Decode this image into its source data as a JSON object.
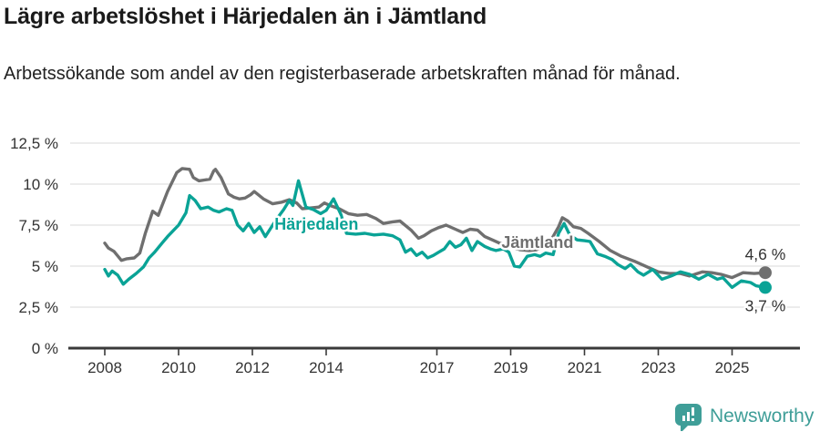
{
  "header": {
    "title": "Lägre arbetslöshet i Härjedalen än i Jämtland",
    "subtitle": "Arbetssökande som andel av den registerbaserade arbetskraften månad för månad."
  },
  "footer": {
    "brand": "Newsworthy"
  },
  "colors": {
    "teal_line": "#0aa396",
    "gray_line": "#6f6f6f",
    "brand_teal": "#3f9e98",
    "axis_text": "#333333",
    "grid_line": "#d9d9d9",
    "axis_line": "#3a3a3a",
    "value_label": "#333333"
  },
  "chart_data": {
    "type": "line",
    "title": "Lägre arbetslöshet i Härjedalen än i Jämtland",
    "xlabel": "",
    "ylabel": "",
    "grid": true,
    "legend_position": "inline-labels",
    "y_axis": {
      "range": [
        0,
        12.5
      ],
      "ticks": [
        {
          "value": 0,
          "label": "0 %"
        },
        {
          "value": 2.5,
          "label": "2,5 %"
        },
        {
          "value": 5,
          "label": "5 %"
        },
        {
          "value": 7.5,
          "label": "7,5 %"
        },
        {
          "value": 10,
          "label": "10 %"
        },
        {
          "value": 12.5,
          "label": "12,5 %"
        }
      ]
    },
    "x_axis": {
      "range": [
        2007,
        2026.8
      ],
      "unit": "year-month",
      "ticks": [
        {
          "year": 2008,
          "label": "2008"
        },
        {
          "year": 2010,
          "label": "2010"
        },
        {
          "year": 2012,
          "label": "2012"
        },
        {
          "year": 2014,
          "label": "2014"
        },
        {
          "year": 2017,
          "label": "2017"
        },
        {
          "year": 2019,
          "label": "2019"
        },
        {
          "year": 2021,
          "label": "2021"
        },
        {
          "year": 2023,
          "label": "2023"
        },
        {
          "year": 2025,
          "label": "2025"
        }
      ]
    },
    "series": [
      {
        "id": "jamtland",
        "name": "Jämtland",
        "color": "#6f6f6f",
        "end_label": "4,6 %",
        "end_label_position": "above",
        "label_pos": {
          "year": 2018.75,
          "value": 6.11
        },
        "points": [
          [
            2008.0,
            6.4
          ],
          [
            2008.1,
            6.1
          ],
          [
            2008.25,
            5.9
          ],
          [
            2008.45,
            5.35
          ],
          [
            2008.6,
            5.45
          ],
          [
            2008.8,
            5.5
          ],
          [
            2008.95,
            5.8
          ],
          [
            2009.1,
            7.0
          ],
          [
            2009.3,
            8.35
          ],
          [
            2009.45,
            8.1
          ],
          [
            2009.7,
            9.55
          ],
          [
            2009.95,
            10.7
          ],
          [
            2010.1,
            10.95
          ],
          [
            2010.3,
            10.9
          ],
          [
            2010.4,
            10.4
          ],
          [
            2010.55,
            10.2
          ],
          [
            2010.7,
            10.25
          ],
          [
            2010.85,
            10.3
          ],
          [
            2010.95,
            10.8
          ],
          [
            2011.0,
            10.9
          ],
          [
            2011.15,
            10.4
          ],
          [
            2011.35,
            9.4
          ],
          [
            2011.5,
            9.2
          ],
          [
            2011.65,
            9.1
          ],
          [
            2011.8,
            9.15
          ],
          [
            2011.95,
            9.35
          ],
          [
            2012.05,
            9.55
          ],
          [
            2012.3,
            9.1
          ],
          [
            2012.55,
            8.8
          ],
          [
            2012.8,
            8.9
          ],
          [
            2013.0,
            9.05
          ],
          [
            2013.2,
            8.85
          ],
          [
            2013.35,
            8.5
          ],
          [
            2013.6,
            8.55
          ],
          [
            2013.8,
            8.6
          ],
          [
            2013.95,
            8.85
          ],
          [
            2014.1,
            8.7
          ],
          [
            2014.35,
            8.5
          ],
          [
            2014.6,
            8.2
          ],
          [
            2014.85,
            8.1
          ],
          [
            2015.1,
            8.15
          ],
          [
            2015.35,
            7.9
          ],
          [
            2015.55,
            7.6
          ],
          [
            2015.8,
            7.7
          ],
          [
            2016.0,
            7.75
          ],
          [
            2016.3,
            7.2
          ],
          [
            2016.5,
            6.7
          ],
          [
            2016.65,
            6.85
          ],
          [
            2016.85,
            7.15
          ],
          [
            2017.05,
            7.35
          ],
          [
            2017.25,
            7.5
          ],
          [
            2017.5,
            7.25
          ],
          [
            2017.7,
            7.05
          ],
          [
            2017.9,
            7.25
          ],
          [
            2018.1,
            7.2
          ],
          [
            2018.3,
            6.8
          ],
          [
            2018.5,
            6.6
          ],
          [
            2018.7,
            6.4
          ],
          [
            2018.85,
            6.3
          ],
          [
            2019.05,
            6.15
          ],
          [
            2019.25,
            6.0
          ],
          [
            2019.5,
            5.95
          ],
          [
            2019.7,
            6.0
          ],
          [
            2019.9,
            6.2
          ],
          [
            2020.1,
            6.6
          ],
          [
            2020.3,
            7.4
          ],
          [
            2020.4,
            7.95
          ],
          [
            2020.55,
            7.75
          ],
          [
            2020.7,
            7.4
          ],
          [
            2020.9,
            7.3
          ],
          [
            2021.1,
            7.0
          ],
          [
            2021.4,
            6.5
          ],
          [
            2021.7,
            5.95
          ],
          [
            2022.0,
            5.6
          ],
          [
            2022.35,
            5.3
          ],
          [
            2022.7,
            4.95
          ],
          [
            2023.0,
            4.65
          ],
          [
            2023.3,
            4.55
          ],
          [
            2023.6,
            4.55
          ],
          [
            2023.85,
            4.4
          ],
          [
            2024.2,
            4.65
          ],
          [
            2024.45,
            4.6
          ],
          [
            2024.7,
            4.5
          ],
          [
            2025.0,
            4.3
          ],
          [
            2025.3,
            4.6
          ],
          [
            2025.6,
            4.55
          ],
          [
            2025.9,
            4.6
          ]
        ]
      },
      {
        "id": "harjedalen",
        "name": "Härjedalen",
        "color": "#0aa396",
        "end_label": "3,7 %",
        "end_label_position": "below",
        "label_pos": {
          "year": 2012.6,
          "value": 7.22
        },
        "points": [
          [
            2008.0,
            4.8
          ],
          [
            2008.1,
            4.4
          ],
          [
            2008.2,
            4.7
          ],
          [
            2008.35,
            4.45
          ],
          [
            2008.5,
            3.9
          ],
          [
            2008.65,
            4.2
          ],
          [
            2008.85,
            4.55
          ],
          [
            2009.05,
            4.95
          ],
          [
            2009.2,
            5.5
          ],
          [
            2009.35,
            5.85
          ],
          [
            2009.55,
            6.4
          ],
          [
            2009.7,
            6.8
          ],
          [
            2009.85,
            7.15
          ],
          [
            2010.0,
            7.5
          ],
          [
            2010.2,
            8.25
          ],
          [
            2010.3,
            9.3
          ],
          [
            2010.45,
            9.0
          ],
          [
            2010.6,
            8.5
          ],
          [
            2010.8,
            8.6
          ],
          [
            2010.95,
            8.4
          ],
          [
            2011.1,
            8.3
          ],
          [
            2011.3,
            8.5
          ],
          [
            2011.45,
            8.4
          ],
          [
            2011.6,
            7.5
          ],
          [
            2011.75,
            7.15
          ],
          [
            2011.9,
            7.6
          ],
          [
            2012.05,
            7.05
          ],
          [
            2012.2,
            7.4
          ],
          [
            2012.35,
            6.8
          ],
          [
            2012.55,
            7.5
          ],
          [
            2012.7,
            8.0
          ],
          [
            2012.85,
            8.45
          ],
          [
            2013.0,
            9.0
          ],
          [
            2013.1,
            8.7
          ],
          [
            2013.25,
            10.2
          ],
          [
            2013.45,
            8.6
          ],
          [
            2013.65,
            8.45
          ],
          [
            2013.85,
            8.2
          ],
          [
            2014.0,
            8.4
          ],
          [
            2014.2,
            9.1
          ],
          [
            2014.4,
            8.15
          ],
          [
            2014.55,
            7.0
          ],
          [
            2014.8,
            6.95
          ],
          [
            2015.05,
            7.0
          ],
          [
            2015.3,
            6.9
          ],
          [
            2015.55,
            6.95
          ],
          [
            2015.8,
            6.85
          ],
          [
            2016.0,
            6.6
          ],
          [
            2016.15,
            5.85
          ],
          [
            2016.3,
            6.05
          ],
          [
            2016.45,
            5.65
          ],
          [
            2016.6,
            5.85
          ],
          [
            2016.75,
            5.5
          ],
          [
            2016.9,
            5.65
          ],
          [
            2017.05,
            5.85
          ],
          [
            2017.2,
            6.05
          ],
          [
            2017.35,
            6.5
          ],
          [
            2017.5,
            6.15
          ],
          [
            2017.65,
            6.3
          ],
          [
            2017.8,
            6.7
          ],
          [
            2017.95,
            5.95
          ],
          [
            2018.1,
            6.5
          ],
          [
            2018.3,
            6.2
          ],
          [
            2018.45,
            6.05
          ],
          [
            2018.6,
            5.95
          ],
          [
            2018.8,
            6.05
          ],
          [
            2018.95,
            5.85
          ],
          [
            2019.1,
            5.0
          ],
          [
            2019.25,
            4.95
          ],
          [
            2019.45,
            5.6
          ],
          [
            2019.65,
            5.7
          ],
          [
            2019.8,
            5.6
          ],
          [
            2019.95,
            5.8
          ],
          [
            2020.15,
            5.7
          ],
          [
            2020.3,
            7.0
          ],
          [
            2020.45,
            7.6
          ],
          [
            2020.6,
            6.9
          ],
          [
            2020.8,
            6.6
          ],
          [
            2021.0,
            6.55
          ],
          [
            2021.15,
            6.5
          ],
          [
            2021.35,
            5.75
          ],
          [
            2021.55,
            5.6
          ],
          [
            2021.75,
            5.4
          ],
          [
            2021.9,
            5.1
          ],
          [
            2022.1,
            4.85
          ],
          [
            2022.25,
            5.1
          ],
          [
            2022.45,
            4.65
          ],
          [
            2022.6,
            4.45
          ],
          [
            2022.85,
            4.8
          ],
          [
            2023.1,
            4.2
          ],
          [
            2023.35,
            4.4
          ],
          [
            2023.6,
            4.65
          ],
          [
            2023.85,
            4.5
          ],
          [
            2024.1,
            4.2
          ],
          [
            2024.35,
            4.5
          ],
          [
            2024.6,
            4.2
          ],
          [
            2024.75,
            4.3
          ],
          [
            2025.0,
            3.7
          ],
          [
            2025.25,
            4.1
          ],
          [
            2025.5,
            4.0
          ],
          [
            2025.65,
            3.8
          ],
          [
            2025.9,
            3.7
          ]
        ]
      }
    ]
  }
}
